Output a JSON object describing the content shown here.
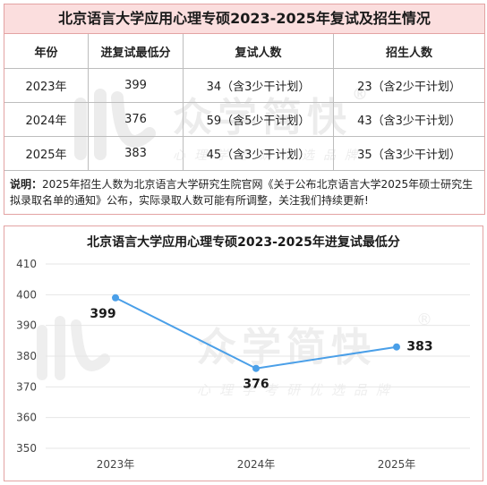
{
  "table": {
    "title": "北京语言大学应用心理专硕2023-2025年复试及招生情况",
    "headers": [
      "年份",
      "进复试最低分",
      "复试人数",
      "招生人数"
    ],
    "rows": [
      [
        "2023年",
        "399",
        "34（含3少干计划）",
        "23（含2少干计划）"
      ],
      [
        "2024年",
        "376",
        "59（含5少干计划）",
        "43（含3少干计划）"
      ],
      [
        "2025年",
        "383",
        "45（含3少干计划）",
        "35（含3少干计划）"
      ]
    ]
  },
  "note": {
    "label": "说明：",
    "text": "2025年招生人数为北京语言大学研究生院官网《关于公布北京语言大学2025年硕士研究生拟录取名单的通知》公布，实际录取人数可能有所调整，关注我们持续更新!"
  },
  "watermark": {
    "brand": "众学简快",
    "reg": "®",
    "slogan": "心理学考研优选品牌"
  },
  "chart_data": {
    "type": "line",
    "title": "北京语言大学应用心理专硕2023-2025年进复试最低分",
    "categories": [
      "2023年",
      "2024年",
      "2025年"
    ],
    "series": [
      {
        "values": [
          399,
          376,
          383
        ]
      }
    ],
    "ylim": [
      350,
      410
    ],
    "yticks": [
      410,
      400,
      390,
      380,
      370,
      360,
      350
    ],
    "color": "#4a9fe8",
    "grid": true
  }
}
